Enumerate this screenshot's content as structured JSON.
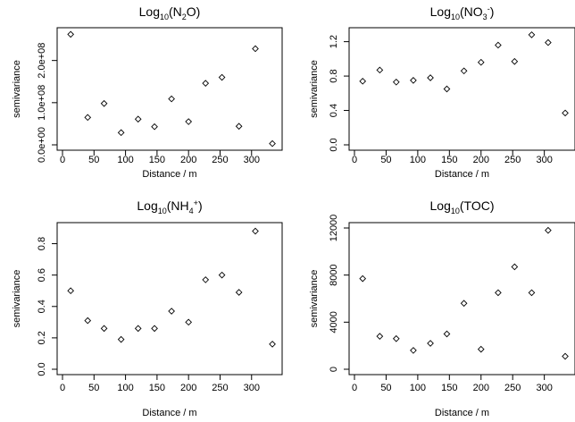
{
  "chart_data": [
    {
      "type": "scatter",
      "title_base": "Log",
      "title_sub": "10",
      "title_species": "(N",
      "title_species_sub": "2",
      "title_end": "O)",
      "xlabel": "Distance / m",
      "ylabel": "semivariance",
      "xlim": [
        0,
        340
      ],
      "ylim": [
        0,
        265000000
      ],
      "x_ticks": [
        0,
        50,
        100,
        150,
        200,
        250,
        300
      ],
      "x_tick_labels": [
        "0",
        "50",
        "100",
        "150",
        "200",
        "250",
        "300"
      ],
      "y_ticks": [
        0,
        100000000,
        200000000
      ],
      "y_tick_labels": [
        "0.0e+00",
        "1.0e+08",
        "2.0e+08"
      ],
      "points": [
        {
          "x": 13,
          "y": 262000000
        },
        {
          "x": 40,
          "y": 65000000
        },
        {
          "x": 66,
          "y": 98000000
        },
        {
          "x": 93,
          "y": 29000000
        },
        {
          "x": 120,
          "y": 61000000
        },
        {
          "x": 146,
          "y": 43000000
        },
        {
          "x": 173,
          "y": 109000000
        },
        {
          "x": 200,
          "y": 55000000
        },
        {
          "x": 227,
          "y": 146000000
        },
        {
          "x": 253,
          "y": 160000000
        },
        {
          "x": 280,
          "y": 44000000
        },
        {
          "x": 306,
          "y": 228000000
        },
        {
          "x": 333,
          "y": 3000000
        }
      ]
    },
    {
      "type": "scatter",
      "title_base": "Log",
      "title_sub": "10",
      "title_species": "(NO",
      "title_species_sub": "3",
      "title_species_sup": "-",
      "title_end": ")",
      "xlabel": "Distance / m",
      "ylabel": "semivariance",
      "xlim": [
        0,
        340
      ],
      "ylim": [
        0,
        1.3
      ],
      "x_ticks": [
        0,
        50,
        100,
        150,
        200,
        250,
        300
      ],
      "x_tick_labels": [
        "0",
        "50",
        "100",
        "150",
        "200",
        "250",
        "300"
      ],
      "y_ticks": [
        0,
        0.4,
        0.8,
        1.2
      ],
      "y_tick_labels": [
        "0.0",
        "0.4",
        "0.8",
        "1.2"
      ],
      "points": [
        {
          "x": 13,
          "y": 0.74
        },
        {
          "x": 40,
          "y": 0.87
        },
        {
          "x": 66,
          "y": 0.73
        },
        {
          "x": 93,
          "y": 0.75
        },
        {
          "x": 120,
          "y": 0.78
        },
        {
          "x": 146,
          "y": 0.65
        },
        {
          "x": 173,
          "y": 0.86
        },
        {
          "x": 200,
          "y": 0.96
        },
        {
          "x": 227,
          "y": 1.16
        },
        {
          "x": 253,
          "y": 0.97
        },
        {
          "x": 280,
          "y": 1.28
        },
        {
          "x": 306,
          "y": 1.19
        },
        {
          "x": 333,
          "y": 0.37
        }
      ]
    },
    {
      "type": "scatter",
      "title_base": "Log",
      "title_sub": "10",
      "title_species": "(NH",
      "title_species_sub": "4",
      "title_species_sup": "+",
      "title_end": ")",
      "xlabel": "Distance / m",
      "ylabel": "semivariance",
      "xlim": [
        0,
        340
      ],
      "ylim": [
        0,
        0.9
      ],
      "x_ticks": [
        0,
        50,
        100,
        150,
        200,
        250,
        300
      ],
      "x_tick_labels": [
        "0",
        "50",
        "100",
        "150",
        "200",
        "250",
        "300"
      ],
      "y_ticks": [
        0,
        0.2,
        0.4,
        0.6,
        0.8
      ],
      "y_tick_labels": [
        "0.0",
        "0.2",
        "0.4",
        "0.6",
        "0.8"
      ],
      "points": [
        {
          "x": 13,
          "y": 0.5
        },
        {
          "x": 40,
          "y": 0.31
        },
        {
          "x": 66,
          "y": 0.26
        },
        {
          "x": 93,
          "y": 0.19
        },
        {
          "x": 120,
          "y": 0.26
        },
        {
          "x": 146,
          "y": 0.26
        },
        {
          "x": 173,
          "y": 0.37
        },
        {
          "x": 200,
          "y": 0.3
        },
        {
          "x": 227,
          "y": 0.57
        },
        {
          "x": 253,
          "y": 0.6
        },
        {
          "x": 280,
          "y": 0.49
        },
        {
          "x": 306,
          "y": 0.88
        },
        {
          "x": 333,
          "y": 0.16
        }
      ]
    },
    {
      "type": "scatter",
      "title_base": "Log",
      "title_sub": "10",
      "title_species": "(TOC)",
      "title_end": "",
      "xlabel": "Distance / m",
      "ylabel": "semivariance",
      "xlim": [
        0,
        340
      ],
      "ylim": [
        0,
        12000
      ],
      "x_ticks": [
        0,
        50,
        100,
        150,
        200,
        250,
        300
      ],
      "x_tick_labels": [
        "0",
        "50",
        "100",
        "150",
        "200",
        "250",
        "300"
      ],
      "y_ticks": [
        0,
        4000,
        8000,
        12000
      ],
      "y_tick_labels": [
        "0",
        "4000",
        "8000",
        "12000"
      ],
      "points": [
        {
          "x": 13,
          "y": 7700
        },
        {
          "x": 40,
          "y": 2800
        },
        {
          "x": 66,
          "y": 2600
        },
        {
          "x": 93,
          "y": 1600
        },
        {
          "x": 120,
          "y": 2200
        },
        {
          "x": 146,
          "y": 3000
        },
        {
          "x": 173,
          "y": 5600
        },
        {
          "x": 200,
          "y": 1700
        },
        {
          "x": 227,
          "y": 6500
        },
        {
          "x": 253,
          "y": 8700
        },
        {
          "x": 280,
          "y": 6500
        },
        {
          "x": 306,
          "y": 11800
        },
        {
          "x": 333,
          "y": 1100
        }
      ]
    }
  ]
}
